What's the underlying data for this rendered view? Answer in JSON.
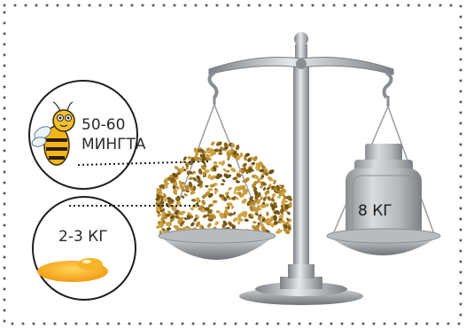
{
  "bees": {
    "count_line1": "50-60",
    "count_line2": "МИНГТА"
  },
  "honey": {
    "amount": "2-3 КГ"
  },
  "weight": {
    "label": "8 КГ"
  },
  "colors": {
    "border_dots": "#5a5a5a",
    "circle_stroke": "#1e1e1e",
    "scale_metal": "#9a9ea2",
    "bees_gold": "#b58a2e",
    "honey": "#f2a21a",
    "weight_metal": "#a9acaf"
  }
}
